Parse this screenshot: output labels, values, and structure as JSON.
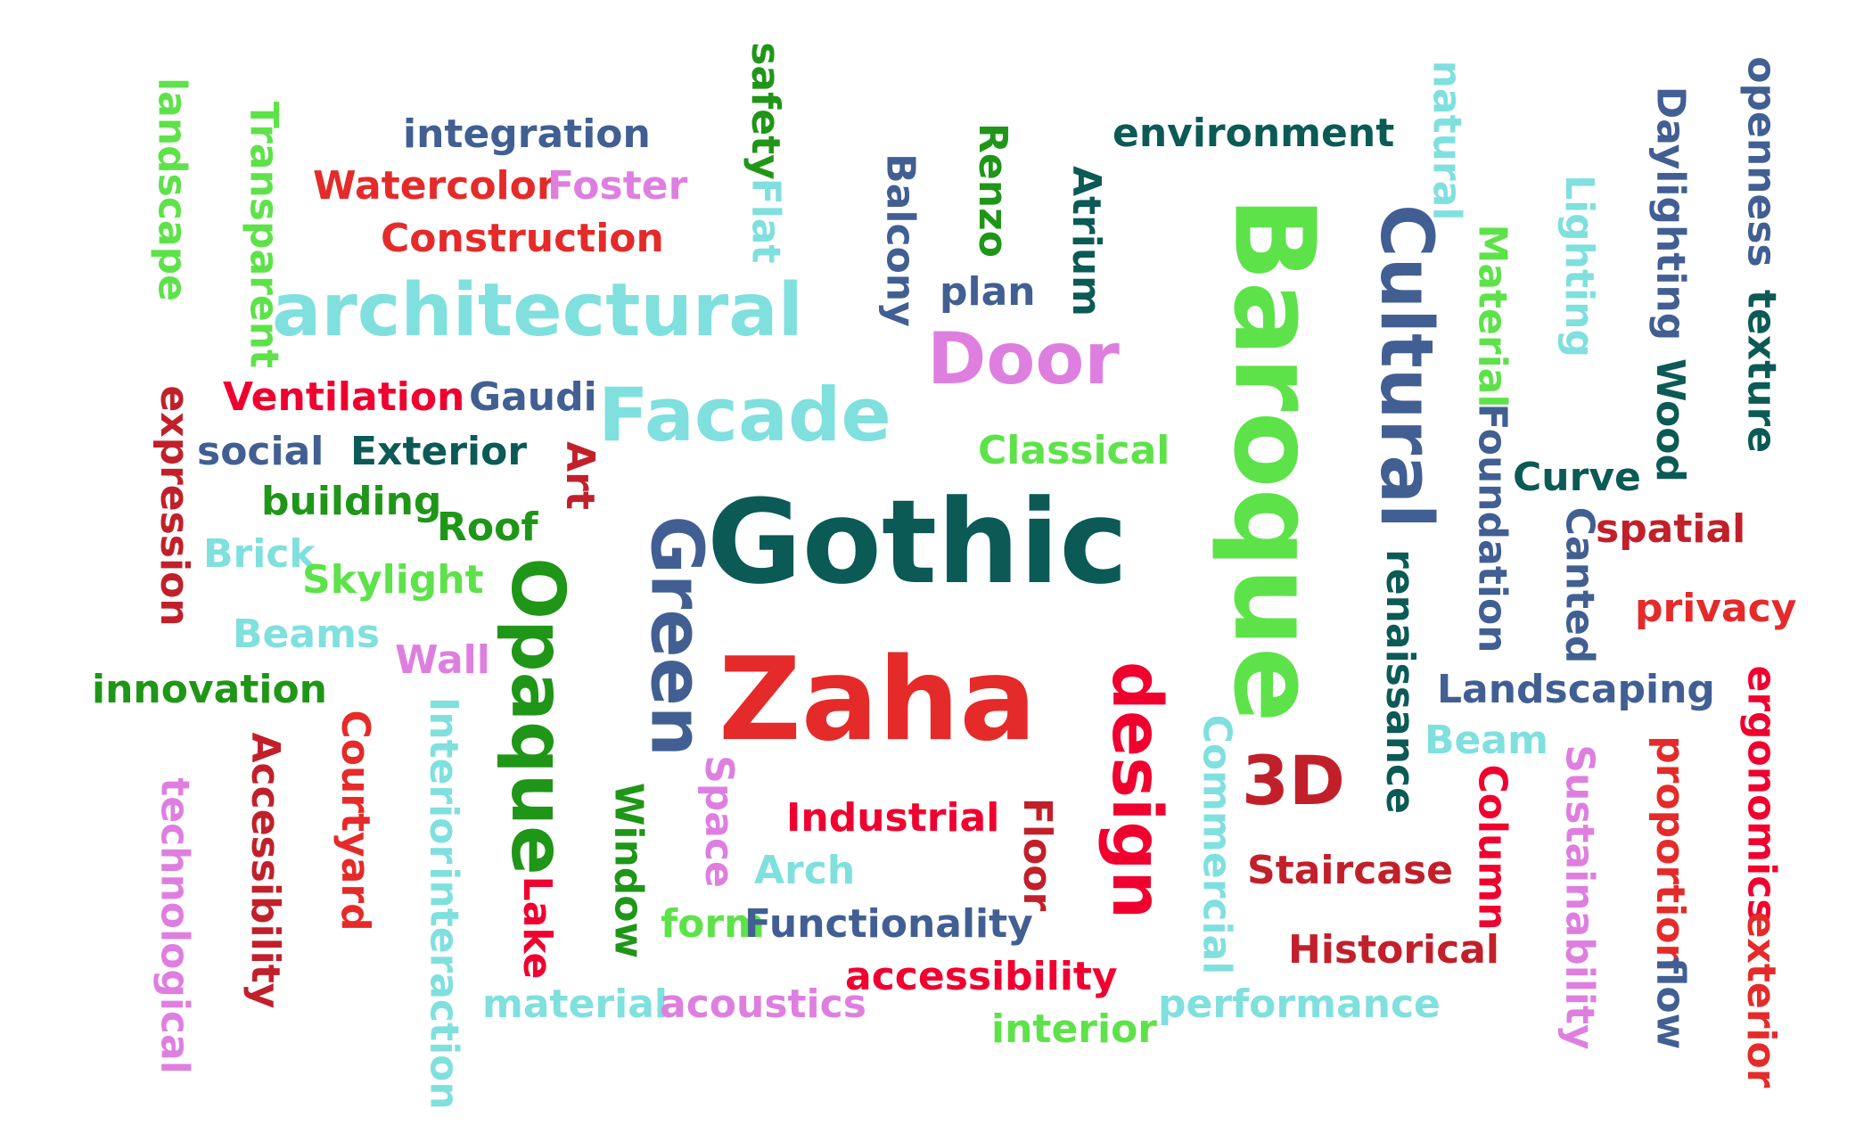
{
  "colors": {
    "c1": "#0b5a55",
    "c2": "#e52a2a",
    "c3": "#5ee24a",
    "c4": "#415f92",
    "c5": "#7fe0de",
    "c6": "#de7fe0",
    "c7": "#1f9617",
    "c8": "#c1202a",
    "c9": "#f0002f"
  },
  "words": [
    {
      "text": "Gothic",
      "color": "c1"
    },
    {
      "text": "Zaha",
      "color": "c2"
    },
    {
      "text": "Baroque",
      "color": "c3"
    },
    {
      "text": "Cultural",
      "color": "c4"
    },
    {
      "text": "architectural",
      "color": "c5"
    },
    {
      "text": "Facade",
      "color": "c5"
    },
    {
      "text": "Door",
      "color": "c6"
    },
    {
      "text": "Green",
      "color": "c4"
    },
    {
      "text": "Opaque",
      "color": "c7"
    },
    {
      "text": "design",
      "color": "c9"
    },
    {
      "text": "3D",
      "color": "c8"
    },
    {
      "text": "integration",
      "color": "c4"
    },
    {
      "text": "Watercolor",
      "color": "c2"
    },
    {
      "text": "Foster",
      "color": "c6"
    },
    {
      "text": "Construction",
      "color": "c2"
    },
    {
      "text": "environment",
      "color": "c1"
    },
    {
      "text": "plan",
      "color": "c4"
    },
    {
      "text": "Ventilation",
      "color": "c9"
    },
    {
      "text": "Gaudi",
      "color": "c4"
    },
    {
      "text": "social",
      "color": "c4"
    },
    {
      "text": "Exterior",
      "color": "c1"
    },
    {
      "text": "building",
      "color": "c7"
    },
    {
      "text": "Roof",
      "color": "c7"
    },
    {
      "text": "Brick",
      "color": "c5"
    },
    {
      "text": "Skylight",
      "color": "c3"
    },
    {
      "text": "Beams",
      "color": "c5"
    },
    {
      "text": "Wall",
      "color": "c6"
    },
    {
      "text": "innovation",
      "color": "c7"
    },
    {
      "text": "Classical",
      "color": "c3"
    },
    {
      "text": "Curve",
      "color": "c1"
    },
    {
      "text": "spatial",
      "color": "c8"
    },
    {
      "text": "privacy",
      "color": "c2"
    },
    {
      "text": "Landscaping",
      "color": "c4"
    },
    {
      "text": "Beam",
      "color": "c5"
    },
    {
      "text": "Industrial",
      "color": "c9"
    },
    {
      "text": "Arch",
      "color": "c5"
    },
    {
      "text": "form",
      "color": "c3"
    },
    {
      "text": "Functionality",
      "color": "c4"
    },
    {
      "text": "accessibility",
      "color": "c9"
    },
    {
      "text": "material",
      "color": "c5"
    },
    {
      "text": "acoustics",
      "color": "c6"
    },
    {
      "text": "interior",
      "color": "c3"
    },
    {
      "text": "performance",
      "color": "c5"
    },
    {
      "text": "Staircase",
      "color": "c8"
    },
    {
      "text": "Historical",
      "color": "c8"
    },
    {
      "text": "landscape",
      "color": "c3"
    },
    {
      "text": "Transparent",
      "color": "c3"
    },
    {
      "text": "safety",
      "color": "c7"
    },
    {
      "text": "Flat",
      "color": "c5"
    },
    {
      "text": "Balcony",
      "color": "c4"
    },
    {
      "text": "Renzo",
      "color": "c7"
    },
    {
      "text": "Atrium",
      "color": "c1"
    },
    {
      "text": "natural",
      "color": "c5"
    },
    {
      "text": "Material",
      "color": "c3"
    },
    {
      "text": "Lighting",
      "color": "c5"
    },
    {
      "text": "Daylighting",
      "color": "c4"
    },
    {
      "text": "Wood",
      "color": "c1"
    },
    {
      "text": "openness",
      "color": "c4"
    },
    {
      "text": "texture",
      "color": "c1"
    },
    {
      "text": "expression",
      "color": "c8"
    },
    {
      "text": "Art",
      "color": "c8"
    },
    {
      "text": "Foundation",
      "color": "c4"
    },
    {
      "text": "renaissance",
      "color": "c1"
    },
    {
      "text": "Canted",
      "color": "c4"
    },
    {
      "text": "technological",
      "color": "c6"
    },
    {
      "text": "Accessibility",
      "color": "c8"
    },
    {
      "text": "Courtyard",
      "color": "c2"
    },
    {
      "text": "Interior",
      "color": "c5"
    },
    {
      "text": "interaction",
      "color": "c5"
    },
    {
      "text": "Lake",
      "color": "c9"
    },
    {
      "text": "Window",
      "color": "c7"
    },
    {
      "text": "Space",
      "color": "c6"
    },
    {
      "text": "Floor",
      "color": "c8"
    },
    {
      "text": "Commercial",
      "color": "c5"
    },
    {
      "text": "Column",
      "color": "c9"
    },
    {
      "text": "Sustainability",
      "color": "c6"
    },
    {
      "text": "proportion",
      "color": "c2"
    },
    {
      "text": "flow",
      "color": "c4"
    },
    {
      "text": "ergonomics",
      "color": "c9"
    },
    {
      "text": "exterior",
      "color": "c2"
    }
  ]
}
